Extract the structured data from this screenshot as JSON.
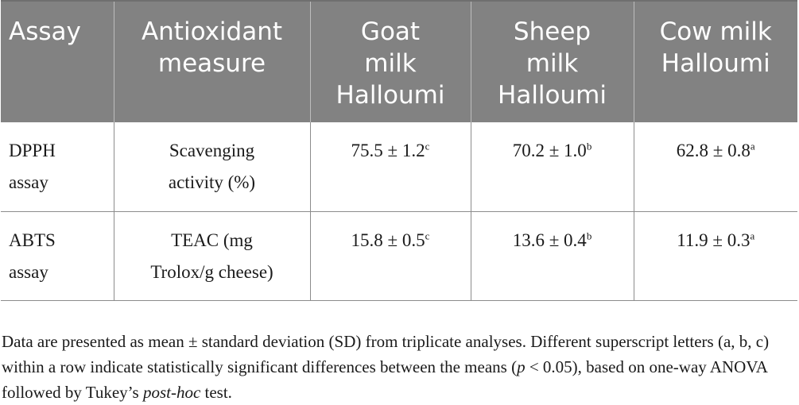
{
  "table": {
    "headers": {
      "assay": "Assay",
      "measure_1": "Antioxidant",
      "measure_2": "measure",
      "goat_1": "Goat",
      "goat_2": "milk",
      "goat_3": "Halloumi",
      "sheep_1": "Sheep",
      "sheep_2": "milk",
      "sheep_3": "Halloumi",
      "cow_1": "Cow milk",
      "cow_2": "Halloumi"
    },
    "rows": [
      {
        "assay_1": "DPPH",
        "assay_2": "assay",
        "measure_1": "Scavenging",
        "measure_2": "activity (%)",
        "goat_value": "75.5 ± 1.2",
        "goat_sup": "c",
        "sheep_value": "70.2 ± 1.0",
        "sheep_sup": "b",
        "cow_value": "62.8 ± 0.8",
        "cow_sup": "a"
      },
      {
        "assay_1": "ABTS",
        "assay_2": "assay",
        "measure_1": "TEAC (mg",
        "measure_2": "Trolox/g cheese)",
        "goat_value": "15.8 ± 0.5",
        "goat_sup": "c",
        "sheep_value": "13.6 ± 0.4",
        "sheep_sup": "b",
        "cow_value": "11.9 ± 0.3",
        "cow_sup": "a"
      }
    ]
  },
  "footnote": {
    "part1": "Data are presented as mean ± standard deviation (SD) from triplicate analyses. Different superscript letters (a, b, c) within a row indicate statistically significant differences between the means (",
    "p": "p",
    "part2": " < 0.05), based on one-way ANOVA followed by Tukey’s ",
    "posthoc": "post-hoc",
    "part3": " test."
  }
}
